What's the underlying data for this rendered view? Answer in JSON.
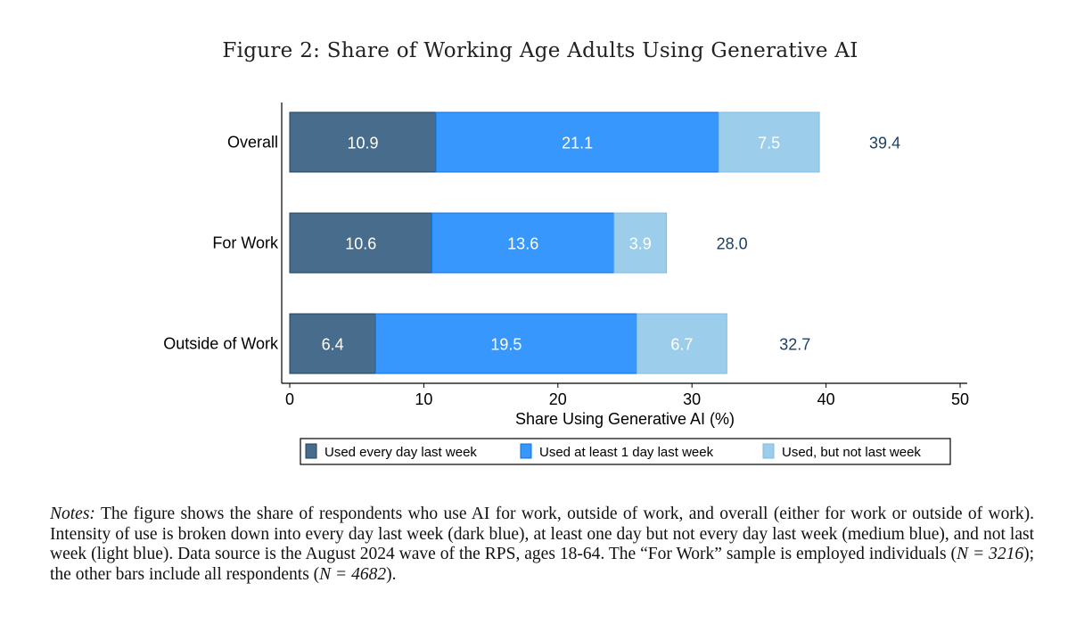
{
  "title": "Figure 2: Share of Working Age Adults Using Generative AI",
  "chart_data": {
    "type": "bar",
    "orientation": "horizontal",
    "stacked": true,
    "title": "Figure 2: Share of Working Age Adults Using Generative AI",
    "categories": [
      "Overall",
      "For Work",
      "Outside of Work"
    ],
    "series": [
      {
        "name": "Used every day last week",
        "color": "#486d8c",
        "values": [
          10.9,
          10.6,
          6.4
        ],
        "labels": [
          "10.9",
          "10.6",
          "6.4"
        ]
      },
      {
        "name": "Used at least 1 day last week",
        "color": "#3797fd",
        "values": [
          21.1,
          13.6,
          19.5
        ],
        "labels": [
          "21.1",
          "13.6",
          "19.5"
        ]
      },
      {
        "name": "Used, but not last week",
        "color": "#9ccdeb",
        "values": [
          7.5,
          3.9,
          6.7
        ],
        "labels": [
          "7.5",
          "3.9",
          "6.7"
        ]
      }
    ],
    "totals": [
      39.4,
      28.0,
      32.7
    ],
    "total_labels": [
      "39.4",
      "28.0",
      "32.7"
    ],
    "xlabel": "Share Using Generative AI (%)",
    "ylabel": "",
    "xlim": [
      0,
      50
    ],
    "xticks": [
      "0",
      "10",
      "20",
      "30",
      "40",
      "50"
    ],
    "grid": false,
    "legend_placement": "bottom"
  },
  "notes": {
    "label": "Notes:",
    "text1": " The figure shows the share of respondents who use AI for work, outside of work, and overall (either for work or outside of work). Intensity of use is broken down into every day last week (dark blue), at least one day but not every day last week (medium blue), and not last week (light blue). Data source is the August 2024 wave of the RPS, ages 18-64. The “For Work” sample is employed individuals (",
    "n1": "N = 3216",
    "text2": "); the other bars include all respondents (",
    "n2": "N = 4682",
    "text3": ")."
  }
}
